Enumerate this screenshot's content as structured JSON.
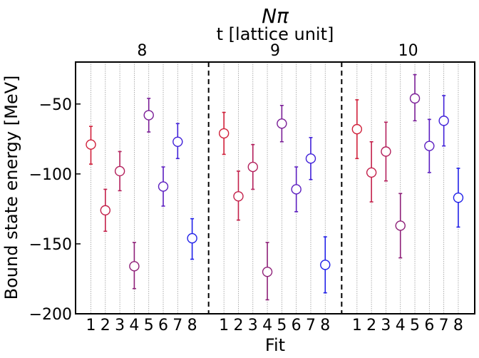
{
  "chart_data": {
    "type": "scatter",
    "title": "Nπ",
    "top_axis_label": "t [lattice unit]",
    "xlabel": "Fit",
    "ylabel": "Bound state energy [MeV]",
    "ylim": [
      -200,
      -20
    ],
    "yticks": [
      -50,
      -100,
      -150,
      -200
    ],
    "ytick_labels": [
      "−50",
      "−100",
      "−150",
      "−200"
    ],
    "fit_labels": [
      "1",
      "2",
      "3",
      "4",
      "5",
      "6",
      "7",
      "8"
    ],
    "grid": "vertical dotted lines at each fit",
    "groups": [
      {
        "t": "8",
        "points": [
          {
            "fit": "1",
            "y": -79,
            "err_low": 14,
            "err_high": 13,
            "color": "#d0203a"
          },
          {
            "fit": "2",
            "y": -126,
            "err_low": 15,
            "err_high": 15,
            "color": "#c3204a"
          },
          {
            "fit": "3",
            "y": -98,
            "err_low": 14,
            "err_high": 14,
            "color": "#b3205c"
          },
          {
            "fit": "4",
            "y": -166,
            "err_low": 16,
            "err_high": 17,
            "color": "#8e2078"
          },
          {
            "fit": "5",
            "y": -58,
            "err_low": 12,
            "err_high": 12,
            "color": "#7a1e96"
          },
          {
            "fit": "6",
            "y": -109,
            "err_low": 14,
            "err_high": 14,
            "color": "#5c1ec0"
          },
          {
            "fit": "7",
            "y": -77,
            "err_low": 12,
            "err_high": 13,
            "color": "#4020d8"
          },
          {
            "fit": "8",
            "y": -146,
            "err_low": 15,
            "err_high": 14,
            "color": "#2020e8"
          }
        ]
      },
      {
        "t": "9",
        "points": [
          {
            "fit": "1",
            "y": -71,
            "err_low": 15,
            "err_high": 15,
            "color": "#d0203a"
          },
          {
            "fit": "2",
            "y": -116,
            "err_low": 17,
            "err_high": 18,
            "color": "#c3204a"
          },
          {
            "fit": "3",
            "y": -95,
            "err_low": 16,
            "err_high": 16,
            "color": "#b3205c"
          },
          {
            "fit": "4",
            "y": -170,
            "err_low": 20,
            "err_high": 21,
            "color": "#8e2078"
          },
          {
            "fit": "5",
            "y": -64,
            "err_low": 13,
            "err_high": 13,
            "color": "#7a1e96"
          },
          {
            "fit": "6",
            "y": -111,
            "err_low": 16,
            "err_high": 16,
            "color": "#5c1ec0"
          },
          {
            "fit": "7",
            "y": -89,
            "err_low": 15,
            "err_high": 15,
            "color": "#4020d8"
          },
          {
            "fit": "8",
            "y": -165,
            "err_low": 20,
            "err_high": 20,
            "color": "#2020e8"
          }
        ]
      },
      {
        "t": "10",
        "points": [
          {
            "fit": "1",
            "y": -68,
            "err_low": 21,
            "err_high": 21,
            "color": "#d0203a"
          },
          {
            "fit": "2",
            "y": -99,
            "err_low": 21,
            "err_high": 22,
            "color": "#c3204a"
          },
          {
            "fit": "3",
            "y": -84,
            "err_low": 21,
            "err_high": 21,
            "color": "#b3205c"
          },
          {
            "fit": "4",
            "y": -137,
            "err_low": 23,
            "err_high": 23,
            "color": "#8e2078"
          },
          {
            "fit": "5",
            "y": -46,
            "err_low": 16,
            "err_high": 17,
            "color": "#7a1e96"
          },
          {
            "fit": "6",
            "y": -80,
            "err_low": 19,
            "err_high": 19,
            "color": "#5c1ec0"
          },
          {
            "fit": "7",
            "y": -62,
            "err_low": 18,
            "err_high": 18,
            "color": "#4020d8"
          },
          {
            "fit": "8",
            "y": -117,
            "err_low": 21,
            "err_high": 21,
            "color": "#2020e8"
          }
        ]
      }
    ]
  }
}
